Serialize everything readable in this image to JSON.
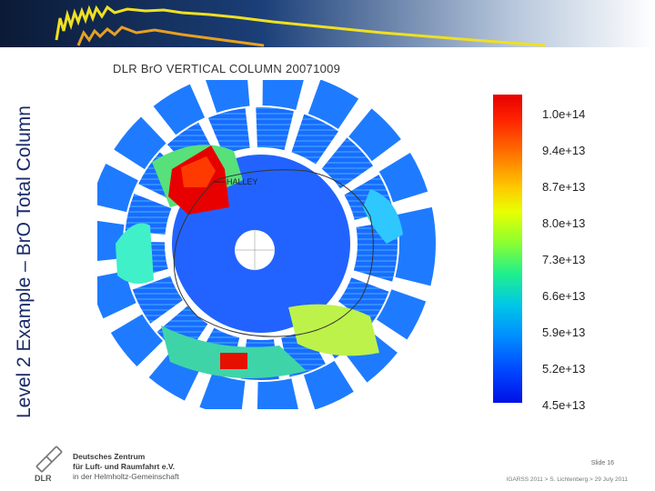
{
  "slide_title": "Level 2 Example – BrO Total Column",
  "map": {
    "title": "DLR BrO VERTICAL COLUMN 20071009",
    "station_label": "HALLEY"
  },
  "colorbar": {
    "labels": [
      "1.0e+14",
      "9.4e+13",
      "8.7e+13",
      "8.0e+13",
      "7.3e+13",
      "6.6e+13",
      "5.9e+13",
      "5.2e+13",
      "4.5e+13"
    ],
    "max_color": "#e60000",
    "min_color": "#0010e6"
  },
  "footer": {
    "org_line1": "Deutsches Zentrum",
    "org_line2": "für Luft- und Raumfahrt e.V.",
    "org_line3": "in der Helmholtz-Gemeinschaft",
    "logo_text": "DLR",
    "slide_number": "Slide 16",
    "conference": "IGARSS 2011  >  S. Lichtenberg  >  29 July 2011"
  },
  "colors": {
    "title_color": "#1a2b6b",
    "banner_dark": "#0b1a36",
    "curve_yellow": "#f0e020",
    "curve_orange": "#e8a020"
  }
}
